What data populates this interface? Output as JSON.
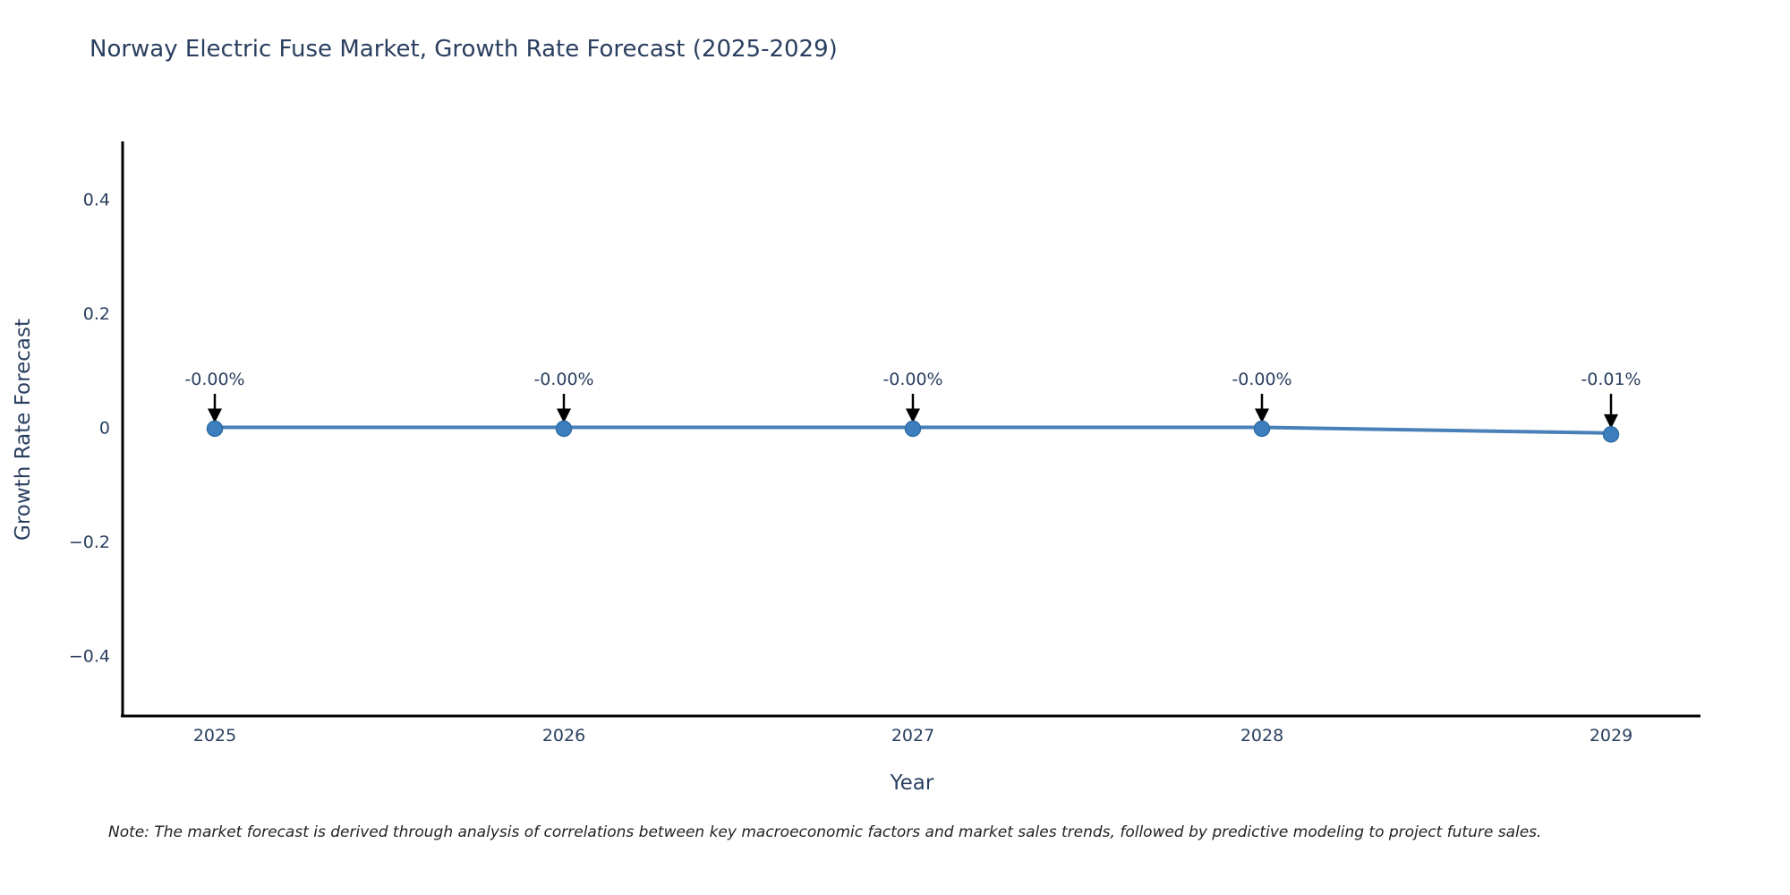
{
  "title": {
    "text": "Norway Electric Fuse Market, Growth Rate Forecast (2025-2029)"
  },
  "note": {
    "text": "Note: The market forecast is derived through analysis of correlations between key macroeconomic factors and market sales trends, followed by predictive modeling to project future sales."
  },
  "chart_data": {
    "type": "line",
    "title": "Norway Electric Fuse Market, Growth Rate Forecast (2025-2029)",
    "xlabel": "Year",
    "ylabel": "Growth Rate Forecast",
    "x": [
      2025,
      2026,
      2027,
      2028,
      2029
    ],
    "series": [
      {
        "name": "Growth Rate Forecast",
        "values_pct": [
          0,
          0,
          0,
          0,
          -0.01
        ],
        "point_labels": [
          "-0.00%",
          "-0.00%",
          "-0.00%",
          "-0.00%",
          "-0.01%"
        ]
      }
    ],
    "xticks": [
      "2025",
      "2026",
      "2027",
      "2028",
      "2029"
    ],
    "yticks": [
      {
        "value": 0.4,
        "label": "0.4"
      },
      {
        "value": 0.2,
        "label": "0.2"
      },
      {
        "value": 0,
        "label": "0"
      },
      {
        "value": -0.2,
        "label": "−0.2"
      },
      {
        "value": -0.4,
        "label": "−0.4"
      }
    ],
    "ylim": [
      -0.5,
      0.5
    ],
    "grid": false,
    "legend_position": "none",
    "colors": {
      "line": "#4a80b8",
      "marker": "#3d7ebf",
      "marker_edge": "#2e6da4",
      "axis_line": "#000000",
      "tick_text": "#2a3f5f",
      "annotation_text": "#2a3f5f",
      "annotation_arrow": "#000000"
    }
  }
}
